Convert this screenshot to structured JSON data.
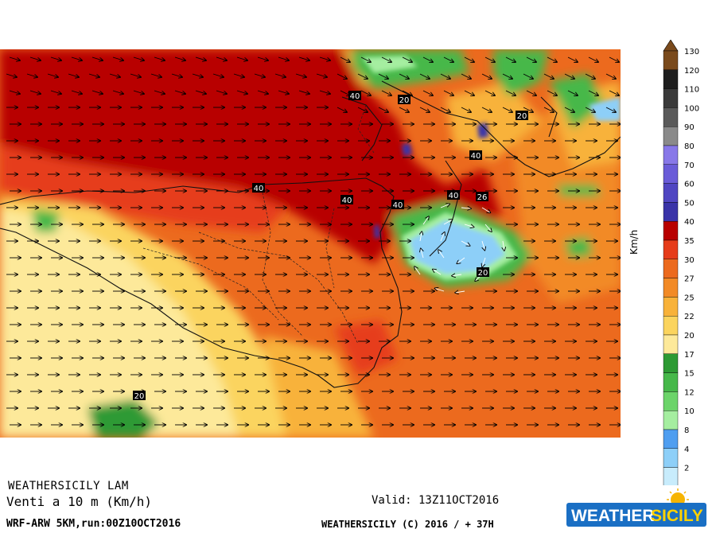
{
  "header": {
    "model_name": "WEATHERSICILY LAM",
    "field_title": "Venti a 10 m (Km/h)",
    "run_info": "WRF-ARW 5KM,run:00Z10OCT2016",
    "valid_time": "Valid: 13Z11OCT2016",
    "copyright": "WEATHERSICILY (C) 2016 / + 37H"
  },
  "logo": {
    "text_left": "WEATHER",
    "text_right": "SICILY"
  },
  "colorbar": {
    "units": "Km/h",
    "levels": [
      {
        "label": "130",
        "color": "#7a4a1c"
      },
      {
        "label": "120",
        "color": "#1e1e1e"
      },
      {
        "label": "110",
        "color": "#3a3a3a"
      },
      {
        "label": "100",
        "color": "#5a5a5a"
      },
      {
        "label": "90",
        "color": "#8a8a8a"
      },
      {
        "label": "80",
        "color": "#8878e8"
      },
      {
        "label": "70",
        "color": "#6a5cd8"
      },
      {
        "label": "60",
        "color": "#5046c2"
      },
      {
        "label": "50",
        "color": "#3a34a8"
      },
      {
        "label": "40",
        "color": "#b80000"
      },
      {
        "label": "35",
        "color": "#e63c1a"
      },
      {
        "label": "30",
        "color": "#ec6a1e"
      },
      {
        "label": "27",
        "color": "#f28a26"
      },
      {
        "label": "25",
        "color": "#f8b23a"
      },
      {
        "label": "22",
        "color": "#fbd45e"
      },
      {
        "label": "20",
        "color": "#fde99a"
      },
      {
        "label": "17",
        "color": "#2d9a34"
      },
      {
        "label": "15",
        "color": "#46b84a"
      },
      {
        "label": "12",
        "color": "#6cd46a"
      },
      {
        "label": "10",
        "color": "#a5eea0"
      },
      {
        "label": "8",
        "color": "#4f9ef0"
      },
      {
        "label": "4",
        "color": "#8dcff8"
      },
      {
        "label": "2",
        "color": "#c8ecfc"
      }
    ]
  },
  "contour_labels": [
    {
      "text": "40"
    },
    {
      "text": "20"
    },
    {
      "text": "20"
    },
    {
      "text": "40"
    },
    {
      "text": "40"
    },
    {
      "text": "40"
    },
    {
      "text": "40"
    },
    {
      "text": "26"
    },
    {
      "text": "40"
    },
    {
      "text": "20"
    },
    {
      "text": "20"
    }
  ]
}
